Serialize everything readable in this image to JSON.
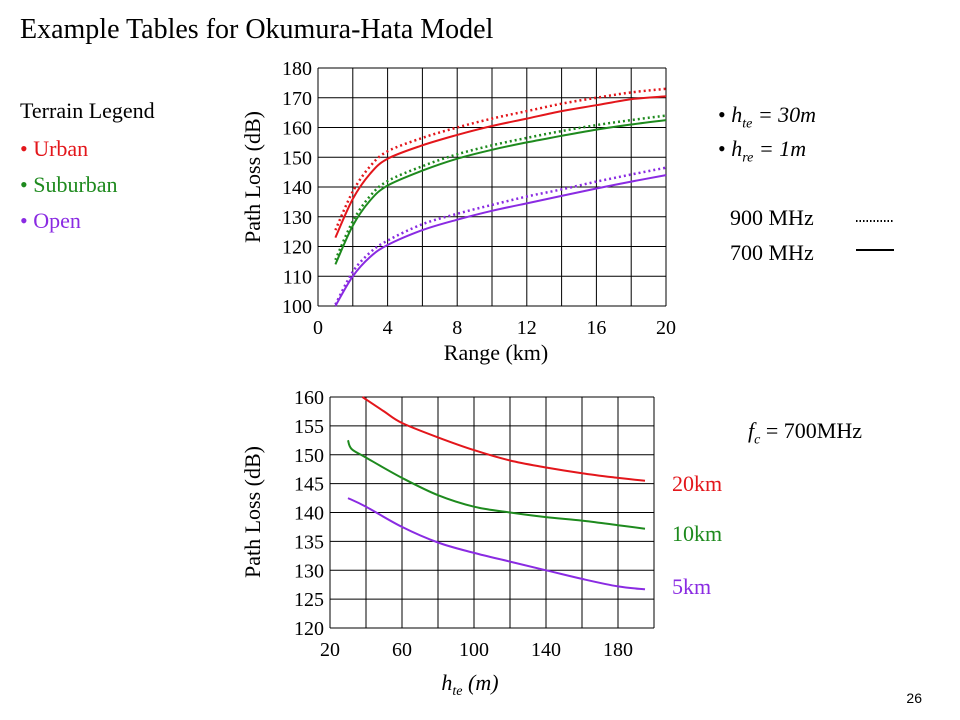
{
  "page": {
    "title": "Example Tables for Okumura-Hata Model",
    "page_number": "26"
  },
  "legend": {
    "title": "Terrain Legend",
    "items": [
      {
        "label": "Urban",
        "color": "#e3161b"
      },
      {
        "label": "Suburban",
        "color": "#1e8a1e"
      },
      {
        "label": "Open",
        "color": "#8a2be2"
      }
    ]
  },
  "params": {
    "hte_symbol": "h",
    "hte_sub": "te",
    "hte_value": " = 30m",
    "hre_symbol": "h",
    "hre_sub": "re",
    "hre_value": " = 1m"
  },
  "line_key": {
    "mhz900": "900 MHz",
    "mhz700": "700 MHz"
  },
  "fc": {
    "symbol": "f",
    "sub": "c",
    "value": " = 700MHz"
  },
  "chart_data": [
    {
      "type": "line",
      "xlabel": "Range (km)",
      "ylabel": "Path Loss (dB)",
      "xlim": [
        0,
        20
      ],
      "ylim": [
        100,
        180
      ],
      "xticks": [
        "0",
        "4",
        "8",
        "12",
        "16",
        "20"
      ],
      "yticks": [
        "100",
        "110",
        "120",
        "130",
        "140",
        "150",
        "160",
        "170",
        "180"
      ],
      "grid": true,
      "x": [
        1,
        2,
        3,
        4,
        6,
        8,
        10,
        12,
        14,
        16,
        18,
        20
      ],
      "series": [
        {
          "name": "Urban 700 MHz",
          "color": "#e3161b",
          "style": "solid",
          "values": [
            123.0,
            136.0,
            144.5,
            149.5,
            154.0,
            157.5,
            160.5,
            163.0,
            165.5,
            167.5,
            169.5,
            170.5
          ]
        },
        {
          "name": "Urban 900 MHz",
          "color": "#e3161b",
          "style": "dotted",
          "values": [
            125.5,
            138.5,
            147.0,
            152.0,
            156.5,
            160.0,
            163.0,
            165.5,
            168.0,
            170.0,
            171.8,
            173.0
          ]
        },
        {
          "name": "Suburban 700 MHz",
          "color": "#1e8a1e",
          "style": "solid",
          "values": [
            114.0,
            127.0,
            135.5,
            140.5,
            145.5,
            149.5,
            152.5,
            155.0,
            157.2,
            159.3,
            161.0,
            162.5
          ]
        },
        {
          "name": "Suburban 900 MHz",
          "color": "#1e8a1e",
          "style": "dotted",
          "values": [
            115.5,
            128.5,
            137.0,
            142.0,
            147.0,
            151.0,
            154.0,
            156.5,
            158.8,
            160.8,
            162.5,
            164.0
          ]
        },
        {
          "name": "Open 700 MHz",
          "color": "#8a2be2",
          "style": "solid",
          "values": [
            99.0,
            110.0,
            116.5,
            120.5,
            125.5,
            129.0,
            132.0,
            134.5,
            137.0,
            139.5,
            141.8,
            144.0
          ]
        },
        {
          "name": "Open 900 MHz",
          "color": "#8a2be2",
          "style": "dotted",
          "values": [
            100.5,
            111.5,
            118.0,
            122.0,
            127.5,
            131.0,
            134.0,
            136.8,
            139.2,
            141.8,
            144.2,
            146.5
          ]
        }
      ]
    },
    {
      "type": "line",
      "xlabel": "h_te (m)",
      "ylabel": "Path Loss (dB)",
      "xlim": [
        20,
        200
      ],
      "ylim": [
        120,
        160
      ],
      "xticks": [
        "20",
        "60",
        "100",
        "140",
        "180"
      ],
      "yticks": [
        "120",
        "125",
        "130",
        "135",
        "140",
        "145",
        "150",
        "155",
        "160"
      ],
      "grid": true,
      "series": [
        {
          "name": "20km",
          "color": "#e3161b",
          "style": "solid",
          "x": [
            38,
            50,
            60,
            80,
            100,
            120,
            140,
            160,
            180,
            195
          ],
          "values": [
            160.0,
            157.5,
            155.5,
            153.0,
            150.8,
            149.0,
            147.8,
            146.8,
            146.0,
            145.5
          ]
        },
        {
          "name": "10km",
          "color": "#1e8a1e",
          "style": "solid",
          "x": [
            30,
            32,
            40,
            60,
            80,
            100,
            120,
            140,
            160,
            180,
            195
          ],
          "values": [
            152.5,
            151.0,
            149.5,
            146.0,
            143.0,
            141.0,
            140.0,
            139.2,
            138.6,
            137.8,
            137.2
          ]
        },
        {
          "name": "5km",
          "color": "#8a2be2",
          "style": "solid",
          "x": [
            30,
            40,
            60,
            80,
            100,
            120,
            140,
            160,
            180,
            195
          ],
          "values": [
            142.5,
            141.0,
            137.5,
            134.8,
            133.0,
            131.5,
            130.0,
            128.5,
            127.2,
            126.7
          ]
        }
      ]
    }
  ]
}
